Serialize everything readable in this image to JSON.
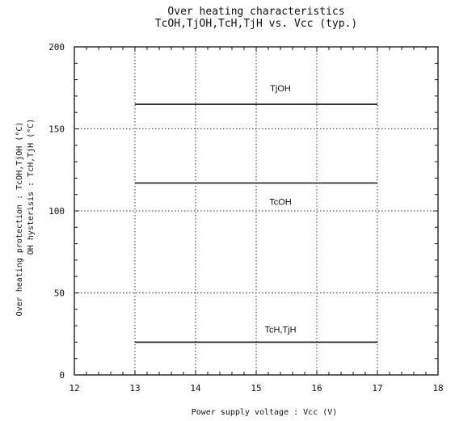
{
  "chart_data": {
    "type": "line",
    "title": "Over heating characteristics",
    "subtitle": "TcOH,TjOH,TcH,TjH vs. Vcc (typ.)",
    "xlabel": "Power supply voltage : Vcc (V)",
    "ylabel": "Over heating protection : TcOH,TjOH (°C)",
    "ylabel2": "OH hysterisis : TcH,TjH (°C)",
    "xlim": [
      12,
      18
    ],
    "ylim": [
      0,
      200
    ],
    "xticks": [
      "12",
      "13",
      "14",
      "15",
      "16",
      "17",
      "18"
    ],
    "yticks": [
      "0",
      "50",
      "100",
      "150",
      "200"
    ],
    "grid": true,
    "series": [
      {
        "name": "TjOH",
        "x": [
          13,
          17
        ],
        "values": [
          165,
          165
        ]
      },
      {
        "name": "TcOH",
        "x": [
          13,
          17
        ],
        "values": [
          117,
          117
        ]
      },
      {
        "name": "TcH,TjH",
        "x": [
          13,
          17
        ],
        "values": [
          20,
          20
        ]
      }
    ]
  }
}
